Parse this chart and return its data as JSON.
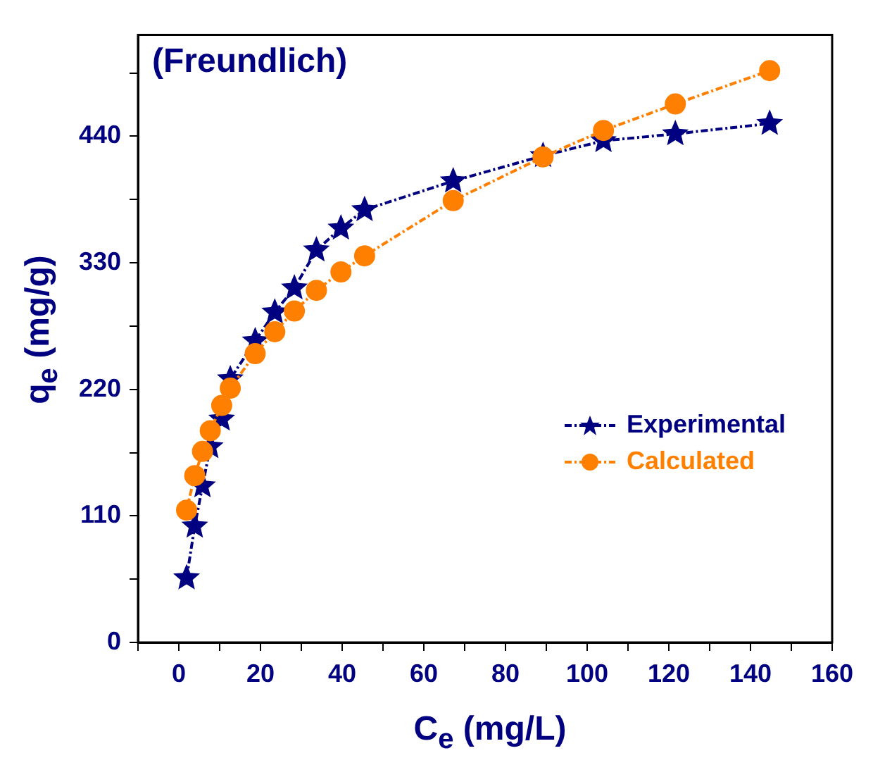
{
  "chart_data": {
    "type": "line",
    "title": "(Freundlich)",
    "xlabel": "C$_{e}$ (mg/L)",
    "ylabel": "q$_{e}$ (mg/g)",
    "x": [
      1.9,
      3.9,
      5.8,
      7.7,
      10.5,
      12.6,
      18.7,
      23.5,
      28.3,
      33.7,
      39.7,
      45.5,
      67.2,
      89.2,
      104,
      121.6,
      144.7
    ],
    "series": [
      {
        "name": "Experimental",
        "color": "#000080",
        "marker": "star",
        "line_style": "dashed",
        "values": [
          56,
          101,
          136,
          170,
          194,
          229,
          262,
          287,
          308,
          341,
          360,
          376,
          401,
          423,
          436,
          442,
          451
        ]
      },
      {
        "name": "Calculated",
        "color": "#ff8000",
        "marker": "circle",
        "line_style": "dashed",
        "values": [
          115,
          145,
          166,
          184,
          206,
          221,
          251,
          270,
          288,
          306,
          322,
          336,
          384,
          422,
          445,
          468,
          497
        ]
      }
    ],
    "xlim": [
      -10,
      160
    ],
    "xticks": [
      {
        "value": -10,
        "label": null
      },
      0,
      {
        "value": 10,
        "label": null
      },
      20,
      {
        "value": 30,
        "label": null
      },
      40,
      {
        "value": 50,
        "label": null
      },
      60,
      {
        "value": 70,
        "label": null
      },
      80,
      {
        "value": 90,
        "label": null
      },
      100,
      {
        "value": 110,
        "label": null
      },
      120,
      {
        "value": 130,
        "label": null
      },
      140,
      {
        "value": 150,
        "label": null
      },
      160
    ],
    "ylim": [
      0,
      528
    ],
    "yticks": [
      0,
      {
        "value": 55,
        "label": null
      },
      110,
      {
        "value": 165,
        "label": null
      },
      220,
      {
        "value": 275,
        "label": null
      },
      330,
      {
        "value": 385,
        "label": null
      },
      440,
      {
        "value": 495,
        "label": null
      }
    ],
    "grid": false,
    "legend": "right"
  }
}
